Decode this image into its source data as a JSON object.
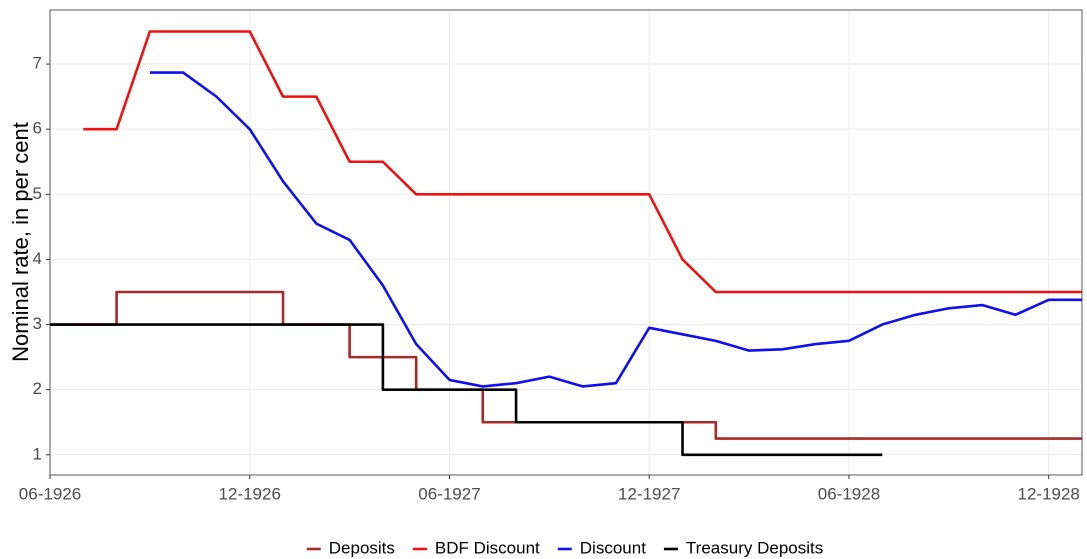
{
  "chart_data": {
    "type": "line",
    "y_label": "Nominal rate, in per cent",
    "xlim": [
      "1926-06",
      "1929-01"
    ],
    "xticks": [
      {
        "value": "1926-06",
        "label": "06-1926"
      },
      {
        "value": "1926-12",
        "label": "12-1926"
      },
      {
        "value": "1927-06",
        "label": "06-1927"
      },
      {
        "value": "1927-12",
        "label": "12-1927"
      },
      {
        "value": "1928-06",
        "label": "06-1928"
      },
      {
        "value": "1928-12",
        "label": "12-1928"
      }
    ],
    "ylim": [
      0.69,
      7.83
    ],
    "yticks": [
      1,
      2,
      3,
      4,
      5,
      6,
      7
    ],
    "grid": true,
    "legend": "bottom",
    "series": [
      {
        "name": "Deposits",
        "color": "#a52a2a",
        "x": [
          "1926-06",
          "1926-08",
          "1926-08",
          "1927-01",
          "1927-01",
          "1927-03",
          "1927-03",
          "1927-05",
          "1927-05",
          "1927-07",
          "1927-07",
          "1928-02",
          "1928-02",
          "1929-01"
        ],
        "values": [
          3,
          3,
          3.5,
          3.5,
          3,
          3,
          2.5,
          2.5,
          2,
          2,
          1.5,
          1.5,
          1.25,
          1.25
        ]
      },
      {
        "name": "BDF Discount",
        "color": "#ee1111",
        "x": [
          "1926-07",
          "1926-08",
          "1926-09",
          "1926-12",
          "1927-01",
          "1927-02",
          "1927-03",
          "1927-04",
          "1927-05",
          "1927-12",
          "1928-01",
          "1928-02",
          "1929-01"
        ],
        "values": [
          6,
          6,
          7.5,
          7.5,
          6.5,
          6.5,
          5.5,
          5.5,
          5,
          5,
          4,
          3.5,
          3.5
        ]
      },
      {
        "name": "Discount",
        "color": "#1010ee",
        "x": [
          "1926-09",
          "1926-10",
          "1926-11",
          "1926-12",
          "1927-01",
          "1927-02",
          "1927-03",
          "1927-04",
          "1927-05",
          "1927-06",
          "1927-07",
          "1927-08",
          "1927-09",
          "1927-10",
          "1927-11",
          "1927-12",
          "1928-01",
          "1928-02",
          "1928-03",
          "1928-04",
          "1928-05",
          "1928-06",
          "1928-07",
          "1928-08",
          "1928-09",
          "1928-10",
          "1928-11",
          "1928-12",
          "1929-01"
        ],
        "values": [
          6.87,
          6.87,
          6.5,
          6.0,
          5.2,
          4.55,
          4.3,
          3.6,
          2.7,
          2.15,
          2.05,
          2.1,
          2.2,
          2.05,
          2.1,
          2.95,
          2.85,
          2.75,
          2.6,
          2.62,
          2.7,
          2.75,
          3.0,
          3.15,
          3.25,
          3.3,
          3.15,
          3.38,
          3.38
        ]
      },
      {
        "name": "Treasury Deposits",
        "color": "#000000",
        "x": [
          "1926-06",
          "1927-04",
          "1927-04",
          "1927-08",
          "1927-08",
          "1928-01",
          "1928-01",
          "1928-07"
        ],
        "values": [
          3,
          3,
          2,
          2,
          1.5,
          1.5,
          1,
          1
        ]
      }
    ]
  }
}
